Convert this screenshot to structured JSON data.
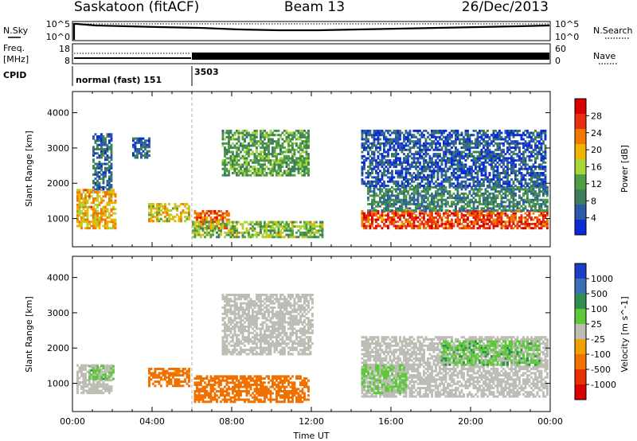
{
  "header": {
    "station": "Saskatoon (fitACF)",
    "beam": "Beam 13",
    "date": "26/Dec/2013"
  },
  "noise_panel": {
    "left_label": "N.Sky",
    "right_label": "N.Search",
    "left_ticks": [
      "10^5",
      "10^0"
    ],
    "right_ticks": [
      "10^5",
      "10^0"
    ]
  },
  "freq_panel": {
    "left_label_1": "Freq.",
    "left_label_2": "[MHz]",
    "right_label": "Nave",
    "left_ticks": [
      "18",
      "8"
    ],
    "right_ticks": [
      "60",
      "0"
    ]
  },
  "cpid_panel": {
    "label": "CPID",
    "modes": [
      {
        "name": "normal (fast) 151",
        "start_hour": 0
      },
      {
        "name": "3503",
        "start_hour": 6
      }
    ]
  },
  "colors": {
    "power_scale": [
      "#0a2bd6",
      "#2c5aa8",
      "#3d7f5a",
      "#4f9d45",
      "#a7d63a",
      "#f0b400",
      "#f07a00",
      "#e83010",
      "#d80000"
    ],
    "velocity_scale": [
      "#1a3fc4",
      "#3a70b8",
      "#2f8f4f",
      "#5cc83a",
      "#bdbdb5",
      "#f0a000",
      "#f07000",
      "#e83000",
      "#d80000"
    ],
    "ground_scatter": "#bdbdb5"
  },
  "chart_data": [
    {
      "type": "heatmap",
      "name_key": "power",
      "ylabel": "Slant Range [km]",
      "xlim": [
        0,
        24
      ],
      "ylim": [
        200,
        4600
      ],
      "yticks": [
        1000,
        2000,
        3000,
        4000
      ],
      "colorbar": {
        "label": "Power [dB]",
        "ticks": [
          4,
          8,
          12,
          16,
          20,
          24,
          28
        ],
        "range": [
          0,
          32
        ]
      },
      "regions": [
        {
          "x": [
            0.2,
            2.2
          ],
          "y": [
            700,
            1800
          ],
          "value": 20
        },
        {
          "x": [
            1.0,
            2.0
          ],
          "y": [
            1800,
            3400
          ],
          "value": 6
        },
        {
          "x": [
            3.0,
            3.9
          ],
          "y": [
            2700,
            3300
          ],
          "value": 6
        },
        {
          "x": [
            3.8,
            5.8
          ],
          "y": [
            900,
            1400
          ],
          "value": 18
        },
        {
          "x": [
            6.1,
            7.8
          ],
          "y": [
            700,
            1200
          ],
          "value": 24
        },
        {
          "x": [
            6.0,
            12.5
          ],
          "y": [
            450,
            900
          ],
          "value": 14
        },
        {
          "x": [
            7.5,
            11.8
          ],
          "y": [
            2200,
            3500
          ],
          "value": 12
        },
        {
          "x": [
            14.5,
            23.9
          ],
          "y": [
            700,
            1200
          ],
          "value": 26
        },
        {
          "x": [
            14.8,
            23.9
          ],
          "y": [
            1200,
            1900
          ],
          "value": 9
        },
        {
          "x": [
            14.5,
            23.8
          ],
          "y": [
            1900,
            3500
          ],
          "value": 5
        }
      ]
    },
    {
      "type": "heatmap",
      "name_key": "velocity",
      "ylabel": "Slant Range [km]",
      "xlabel": "Time UT",
      "xlim": [
        0,
        24
      ],
      "ylim": [
        200,
        4600
      ],
      "yticks": [
        1000,
        2000,
        3000,
        4000
      ],
      "xticks": [
        "00:00",
        "04:00",
        "08:00",
        "12:00",
        "16:00",
        "20:00",
        "00:00"
      ],
      "colorbar": {
        "label": "Velocity [m s^-1]",
        "ticks": [
          "1000",
          "500",
          "100",
          "25",
          "-25",
          "-100",
          "-500",
          "-1000"
        ]
      },
      "regions": [
        {
          "x": [
            0.2,
            2.0
          ],
          "y": [
            700,
            1500
          ],
          "value": "ground"
        },
        {
          "x": [
            0.8,
            2.1
          ],
          "y": [
            1100,
            1500
          ],
          "value": 50
        },
        {
          "x": [
            3.8,
            5.8
          ],
          "y": [
            900,
            1400
          ],
          "value": -150
        },
        {
          "x": [
            6.1,
            11.8
          ],
          "y": [
            450,
            1200
          ],
          "value": -200
        },
        {
          "x": [
            7.5,
            12.0
          ],
          "y": [
            1800,
            3500
          ],
          "value": "ground"
        },
        {
          "x": [
            14.5,
            23.9
          ],
          "y": [
            600,
            2300
          ],
          "value": "ground"
        },
        {
          "x": [
            14.5,
            16.8
          ],
          "y": [
            700,
            1500
          ],
          "value": 40
        },
        {
          "x": [
            18.5,
            23.5
          ],
          "y": [
            1500,
            2200
          ],
          "value": 60
        }
      ]
    }
  ]
}
